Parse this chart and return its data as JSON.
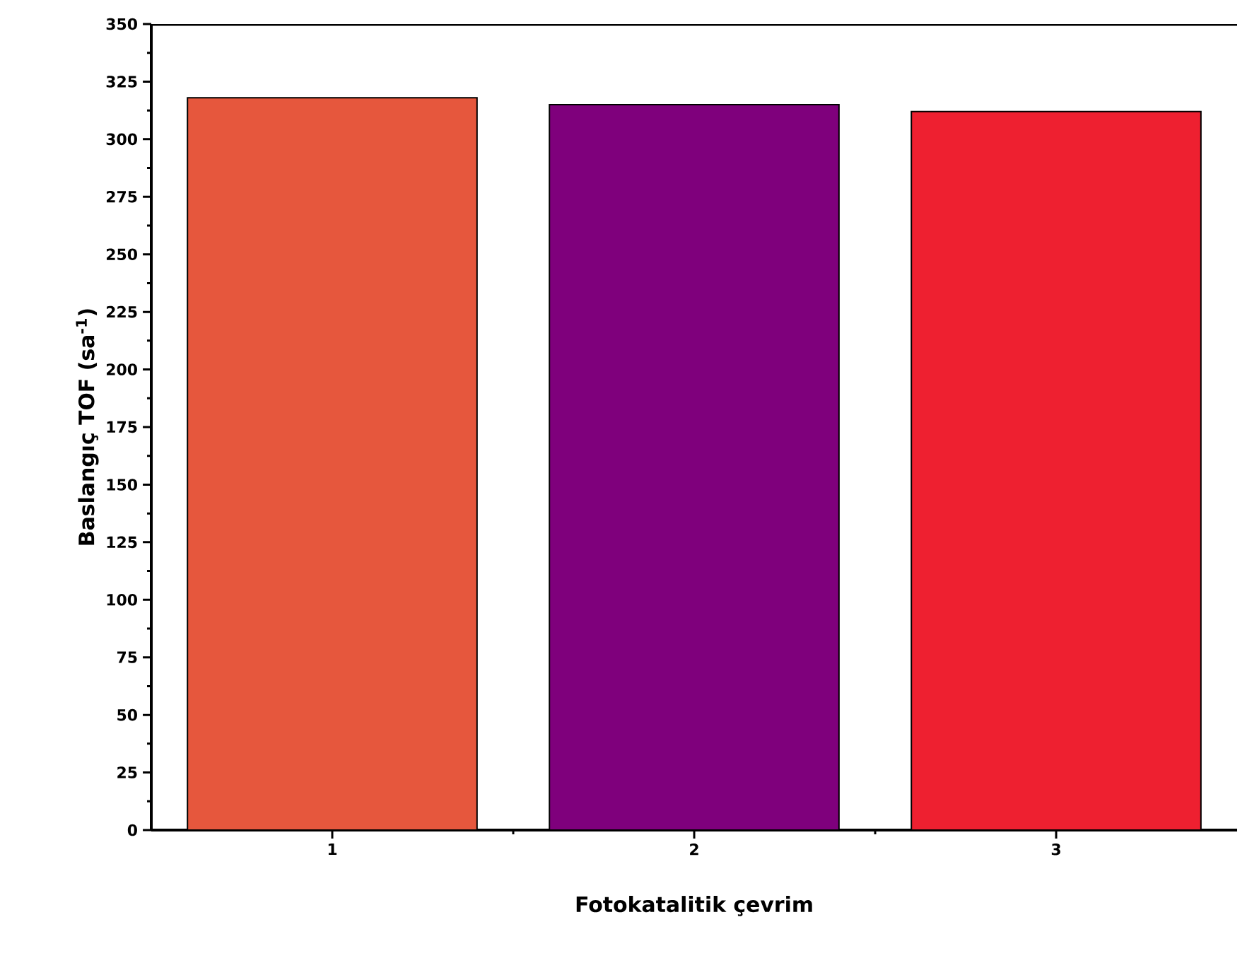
{
  "chart_data": {
    "type": "bar",
    "xlabel": "Fotokatalitik çevrim",
    "ylabel": "Baslangıç TOF (sa$^{-1}$)",
    "categories": [
      "1",
      "2",
      "3"
    ],
    "values": [
      318,
      315,
      312
    ],
    "colors": [
      "#e6573d",
      "#7f007c",
      "#ee2030"
    ],
    "ylim": [
      0,
      350
    ],
    "yticks": [
      0,
      25,
      50,
      75,
      100,
      125,
      150,
      175,
      200,
      225,
      250,
      275,
      300,
      325,
      350
    ]
  }
}
